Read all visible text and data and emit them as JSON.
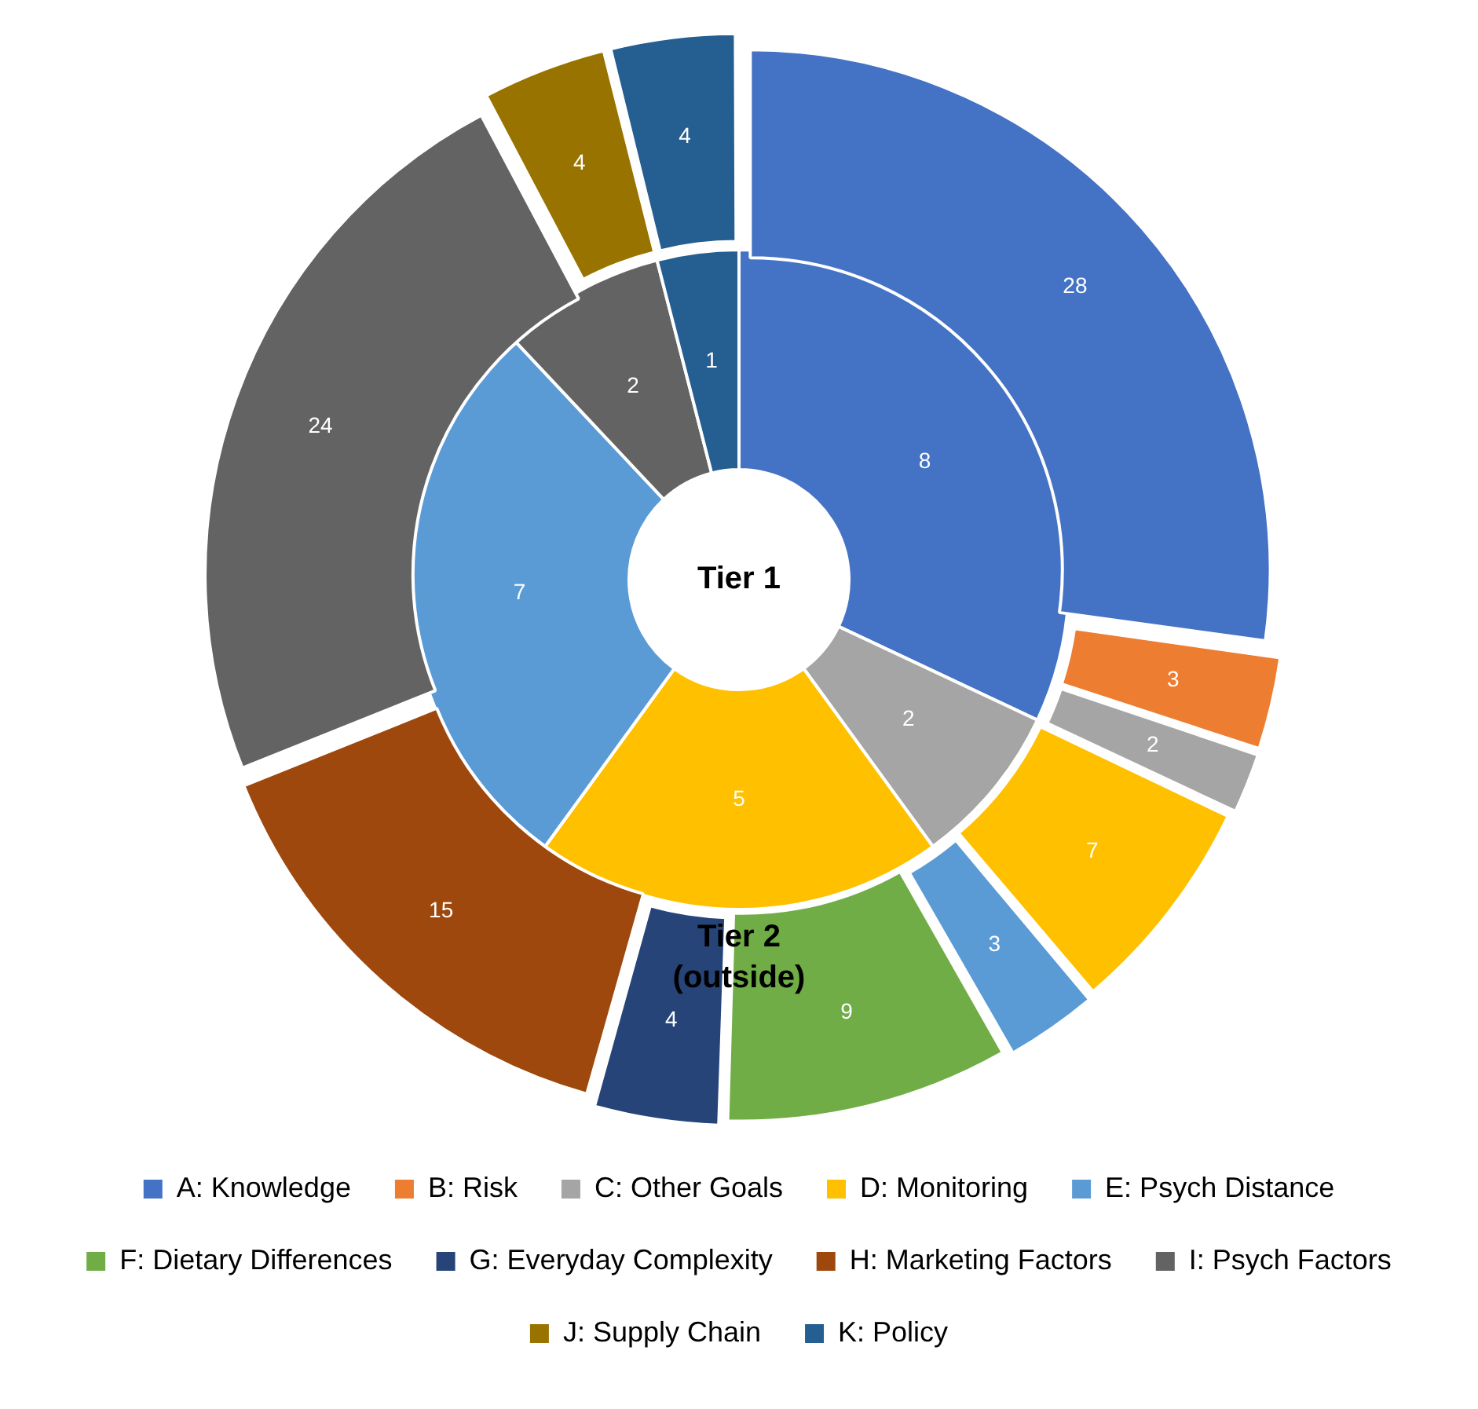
{
  "chart_data": {
    "type": "donut",
    "categories": [
      "A: Knowledge",
      "B: Risk",
      "C: Other Goals",
      "D: Monitoring",
      "E: Psych Distance",
      "F: Dietary Differences",
      "G: Everyday Complexity",
      "H: Marketing Factors",
      "I: Psych Factors",
      "J: Supply Chain",
      "K: Policy"
    ],
    "colors": [
      "#4472c4",
      "#ed7d31",
      "#a5a5a5",
      "#ffc000",
      "#5b9bd5",
      "#70ad47",
      "#264478",
      "#9e480e",
      "#636363",
      "#997300",
      "#255e91"
    ],
    "series": [
      {
        "name": "Tier 1",
        "values": [
          8,
          null,
          2,
          5,
          7,
          null,
          null,
          null,
          2,
          null,
          1
        ]
      },
      {
        "name": "Tier 2 (outside)",
        "values": [
          28,
          3,
          2,
          7,
          3,
          9,
          4,
          15,
          24,
          4,
          4
        ]
      }
    ],
    "data_labels": true,
    "legend": "bottom"
  }
}
